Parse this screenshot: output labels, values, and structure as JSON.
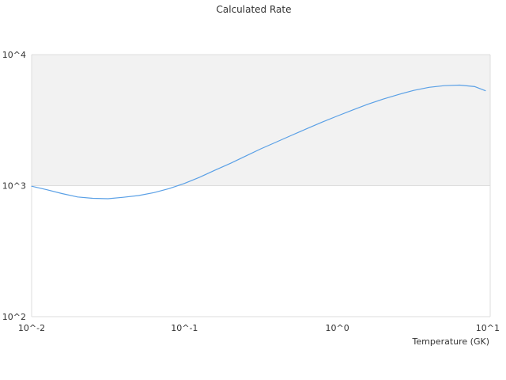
{
  "chart_data": {
    "type": "line",
    "title": "Calculated Rate",
    "xlabel": "Temperature (GK)",
    "ylabel": "",
    "x_scale": "log",
    "y_scale": "log",
    "xlim": [
      0.01,
      10
    ],
    "ylim": [
      100,
      10000
    ],
    "x_ticks": [
      {
        "value": 0.01,
        "label": "10^-2"
      },
      {
        "value": 0.1,
        "label": "10^-1"
      },
      {
        "value": 1,
        "label": "10^0"
      },
      {
        "value": 10,
        "label": "10^1"
      }
    ],
    "y_ticks": [
      {
        "value": 10000,
        "label": "10^4"
      },
      {
        "value": 1000,
        "label": "10^3"
      },
      {
        "value": 100,
        "label": "10^2"
      }
    ],
    "shaded_band": {
      "y_from": 1000,
      "y_to": 10000
    },
    "grid": false,
    "legend": "none",
    "colors": {
      "line": "#5aa0e6",
      "band": "#f2f2f2",
      "axis": "#dddddd"
    },
    "series": [
      {
        "x": [
          0.01,
          0.0126,
          0.0158,
          0.02,
          0.0251,
          0.0316,
          0.0398,
          0.0501,
          0.0631,
          0.0794,
          0.1,
          0.126,
          0.158,
          0.2,
          0.251,
          0.316,
          0.398,
          0.501,
          0.631,
          0.794,
          1.0,
          1.26,
          1.58,
          2.0,
          2.51,
          3.16,
          3.98,
          5.01,
          6.31,
          7.94,
          9.3
        ],
        "y": [
          990,
          930,
          870,
          820,
          800,
          795,
          815,
          840,
          885,
          950,
          1040,
          1160,
          1310,
          1480,
          1680,
          1910,
          2150,
          2420,
          2720,
          3050,
          3400,
          3780,
          4180,
          4580,
          4960,
          5330,
          5630,
          5800,
          5850,
          5700,
          5300
        ]
      }
    ]
  }
}
